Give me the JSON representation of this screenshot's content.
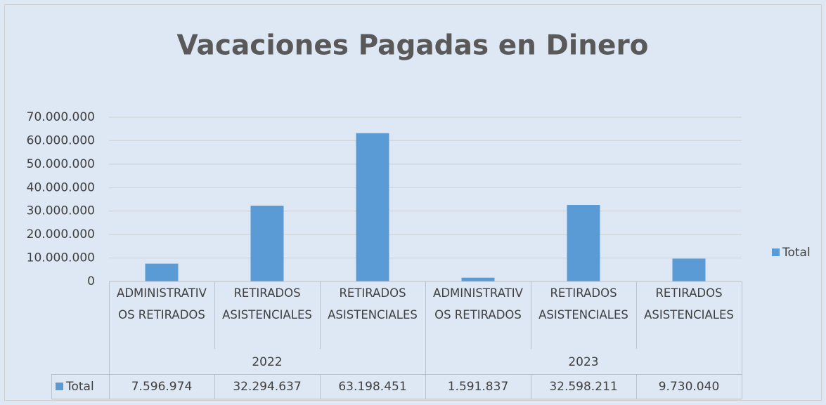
{
  "chart_data": {
    "type": "bar",
    "title": "Vacaciones Pagadas en Dinero",
    "groups": [
      {
        "name": "2022",
        "categories": [
          "ADMINISTRATIVOS RETIRADOS",
          "RETIRADOS ASISTENCIALES",
          "RETIRADOS ASISTENCIALES"
        ]
      },
      {
        "name": "2023",
        "categories": [
          "ADMINISTRATIVOS RETIRADOS",
          "RETIRADOS ASISTENCIALES",
          "RETIRADOS ASISTENCIALES"
        ]
      }
    ],
    "series": [
      {
        "name": "Total",
        "color": "#5b9bd5",
        "values": [
          7596974,
          32294637,
          63198451,
          1591837,
          32598211,
          9730040
        ],
        "value_labels": [
          "7.596.974",
          "32.294.637",
          "63.198.451",
          "1.591.837",
          "32.598.211",
          "9.730.040"
        ]
      }
    ],
    "ylim": [
      0,
      70000000
    ],
    "yticks": [
      0,
      {
        "value": 10000000,
        "label": "10.000.000"
      },
      {
        "value": 20000000,
        "label": "20.000.000"
      },
      {
        "value": 30000000,
        "label": "30.000.000"
      },
      {
        "value": 40000000,
        "label": "40.000.000"
      },
      {
        "value": 50000000,
        "label": "50.000.000"
      },
      {
        "value": 60000000,
        "label": "60.000.000"
      },
      {
        "value": 70000000,
        "label": "70.000.000"
      }
    ],
    "grid": true,
    "legend": "right",
    "data_table": true
  }
}
